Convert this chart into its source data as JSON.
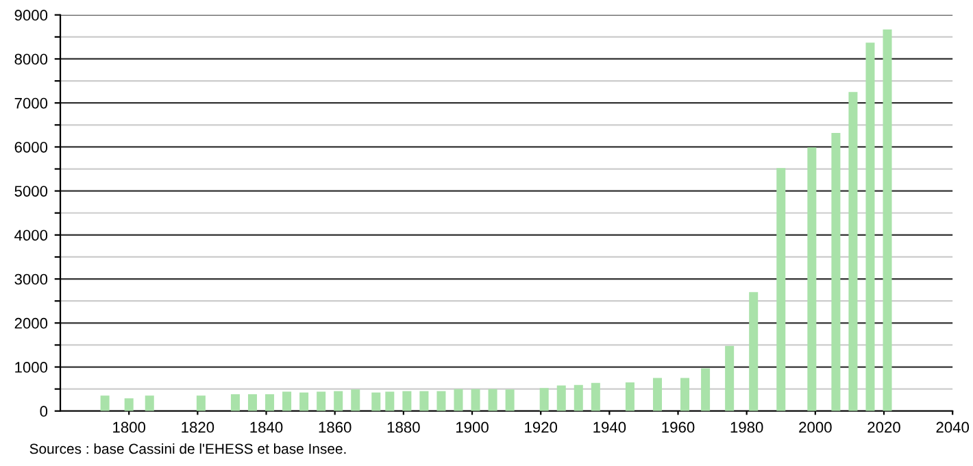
{
  "chart_data": {
    "type": "bar",
    "color": "#a9e2a9",
    "x": [
      1793,
      1800,
      1806,
      1821,
      1831,
      1836,
      1841,
      1846,
      1851,
      1856,
      1861,
      1866,
      1872,
      1876,
      1881,
      1886,
      1891,
      1896,
      1901,
      1906,
      1911,
      1921,
      1926,
      1931,
      1936,
      1946,
      1954,
      1962,
      1968,
      1975,
      1982,
      1990,
      1999,
      2006,
      2011,
      2016,
      2021
    ],
    "values": [
      350,
      290,
      350,
      350,
      380,
      380,
      380,
      440,
      420,
      440,
      450,
      490,
      420,
      440,
      450,
      450,
      450,
      500,
      500,
      500,
      490,
      520,
      580,
      590,
      640,
      650,
      750,
      750,
      970,
      1480,
      2700,
      5520,
      5990,
      6320,
      7250,
      8370,
      8670
    ],
    "xlim": [
      1780,
      2040
    ],
    "xticks": [
      1800,
      1820,
      1840,
      1860,
      1880,
      1900,
      1920,
      1940,
      1960,
      1980,
      2000,
      2020,
      2040
    ],
    "ylim": [
      0,
      9000
    ],
    "yticks": [
      0,
      {
        "value": 500,
        "label": null
      },
      1000,
      {
        "value": 1500,
        "label": null
      },
      2000,
      {
        "value": 2500,
        "label": null
      },
      3000,
      {
        "value": 3500,
        "label": null
      },
      4000,
      {
        "value": 4500,
        "label": null
      },
      5000,
      {
        "value": 5500,
        "label": null
      },
      6000,
      {
        "value": 6500,
        "label": null
      },
      7000,
      {
        "value": 7500,
        "label": null
      },
      8000,
      {
        "value": 8500,
        "label": null
      },
      9000
    ],
    "grid": "y",
    "annotations": [
      "Sources : base Cassini de l'EHESS et base Insee."
    ]
  }
}
